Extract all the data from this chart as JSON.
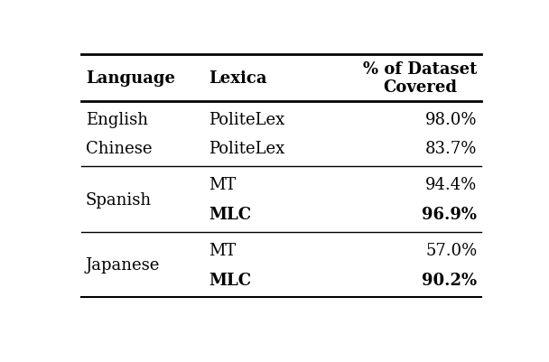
{
  "col_headers": [
    "Language",
    "Lexica",
    "% of Dataset\nCovered"
  ],
  "rows": [
    {
      "lang": "English",
      "lang_bold": false,
      "lexica": "PoliteLex",
      "lexica_bold": false,
      "pct": "98.0%",
      "pct_bold": false
    },
    {
      "lang": "Chinese",
      "lang_bold": false,
      "lexica": "PoliteLex",
      "lexica_bold": false,
      "pct": "83.7%",
      "pct_bold": false
    },
    {
      "lang": "Spanish",
      "lang_bold": false,
      "lexica": "MT",
      "lexica_bold": false,
      "pct": "94.4%",
      "pct_bold": false
    },
    {
      "lang": "",
      "lang_bold": false,
      "lexica": "MLC",
      "lexica_bold": true,
      "pct": "96.9%",
      "pct_bold": true
    },
    {
      "lang": "Japanese",
      "lang_bold": false,
      "lexica": "MT",
      "lexica_bold": false,
      "pct": "57.0%",
      "pct_bold": false
    },
    {
      "lang": "",
      "lang_bold": false,
      "lexica": "MLC",
      "lexica_bold": true,
      "pct": "90.2%",
      "pct_bold": true
    }
  ],
  "bg_color": "#ffffff",
  "text_color": "#000000",
  "font_size": 13,
  "header_font_size": 13
}
